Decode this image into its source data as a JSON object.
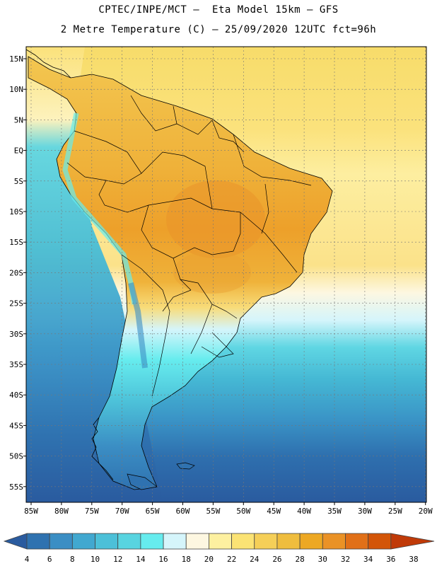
{
  "header": {
    "line1": "CPTEC/INPE/MCT –  Eta Model 15km – GFS",
    "line2": "2 Metre Temperature (C) – 25/09/2020 12UTC fct=96h"
  },
  "map": {
    "lat_labels": [
      "15N",
      "10N",
      "5N",
      "EQ",
      "5S",
      "10S",
      "15S",
      "20S",
      "25S",
      "30S",
      "35S",
      "40S",
      "45S",
      "50S",
      "55S"
    ],
    "lon_labels": [
      "85W",
      "80W",
      "75W",
      "70W",
      "65W",
      "60W",
      "55W",
      "50W",
      "45W",
      "40W",
      "35W",
      "30W",
      "25W",
      "20W"
    ]
  },
  "legend": {
    "labels": [
      "4",
      "6",
      "8",
      "10",
      "12",
      "14",
      "16",
      "18",
      "20",
      "22",
      "24",
      "26",
      "28",
      "30",
      "32",
      "34",
      "36",
      "38"
    ],
    "colors": [
      "#2a5b9f",
      "#2f72b0",
      "#3b8ec4",
      "#41a8d0",
      "#4cc0d8",
      "#58d4e0",
      "#66ecee",
      "#d5f5fb",
      "#fdf7e1",
      "#fdf0a0",
      "#fbe374",
      "#f5cf58",
      "#efbd3e",
      "#eda823",
      "#ea9226",
      "#e17018",
      "#d35508",
      "#c03a08"
    ]
  }
}
